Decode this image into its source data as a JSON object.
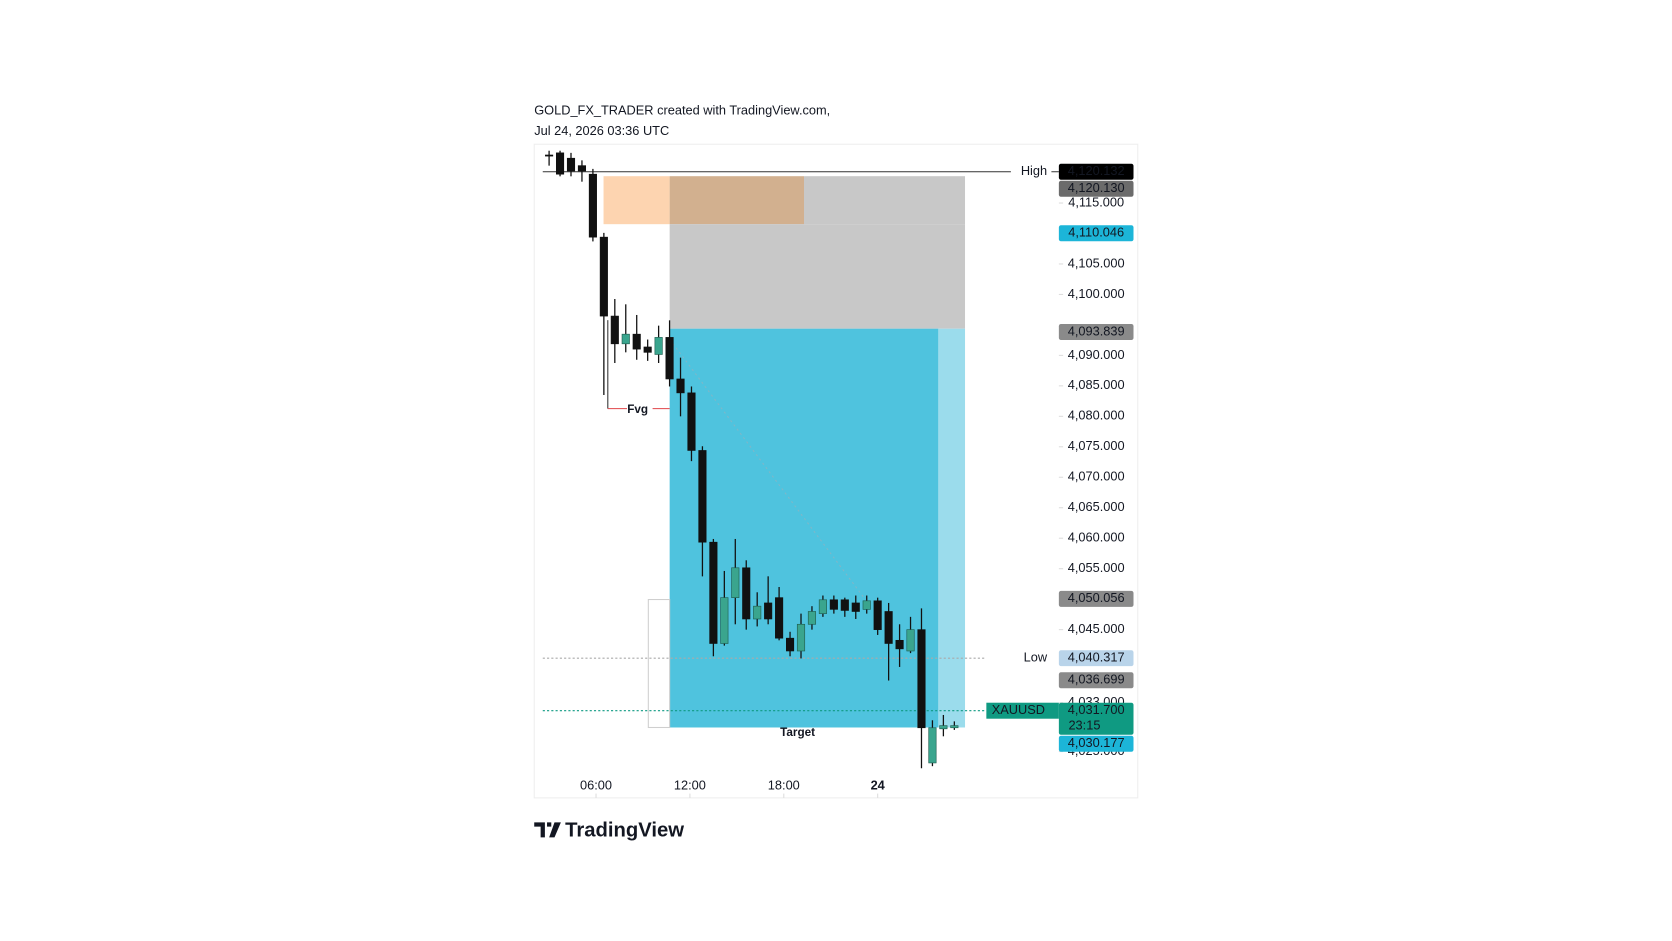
{
  "header": {
    "line1": "GOLD_FX_TRADER created with TradingView.com,",
    "line2": "Jul 24, 2026 03:36 UTC"
  },
  "footer": {
    "brand": "TradingView"
  },
  "chart_data": {
    "type": "candlestick",
    "x": [
      3,
      3.7,
      4.4,
      5.1,
      5.8,
      6.5,
      7.2,
      7.9,
      8.6,
      9.3,
      10,
      10.7,
      11.4,
      12.1,
      12.8,
      13.5,
      14.2,
      14.9,
      15.6,
      16.3,
      17,
      17.7,
      18.4,
      19.1,
      19.8,
      20.5,
      21.2,
      21.9,
      22.6,
      23.3,
      24,
      24.7,
      25.4,
      26.1,
      26.8,
      27.5,
      28.2,
      28.9
    ],
    "open": [
      4122.88,
      4123.23,
      4122.35,
      4121.13,
      4119.73,
      4109.4,
      4096.45,
      4091.9,
      4093.48,
      4091.38,
      4090.15,
      4092.95,
      4086.13,
      4083.85,
      4074.4,
      4059.35,
      4042.73,
      4050.25,
      4055.15,
      4046.75,
      4049.38,
      4050.25,
      4043.6,
      4041.5,
      4045.88,
      4047.63,
      4049.9,
      4049.9,
      4049.38,
      4048.33,
      4049.73,
      4047.98,
      4043.25,
      4041.5,
      4045.0,
      4023.13,
      4028.73,
      4028.9
    ],
    "high": [
      4123.58,
      4123.58,
      4123.23,
      4122.0,
      4120.6,
      4110.1,
      4099.25,
      4098.38,
      4096.63,
      4092.6,
      4094.88,
      4095.75,
      4089.63,
      4084.9,
      4075.1,
      4059.88,
      4054.63,
      4059.88,
      4056.38,
      4051.13,
      4053.75,
      4052.0,
      4044.65,
      4047.63,
      4048.85,
      4050.6,
      4050.6,
      4050.25,
      4050.6,
      4050.6,
      4050.25,
      4049.38,
      4045.88,
      4047.1,
      4048.5,
      4030.13,
      4031.0,
      4029.95
    ],
    "low": [
      4121.13,
      4119.38,
      4119.38,
      4118.5,
      4108.7,
      4083.5,
      4088.75,
      4090.5,
      4089.28,
      4089.1,
      4088.75,
      4084.9,
      4080.0,
      4072.65,
      4053.75,
      4040.63,
      4042.38,
      4045.88,
      4045.0,
      4045.53,
      4045.88,
      4043.25,
      4040.63,
      4040.28,
      4045.0,
      4047.1,
      4047.63,
      4047.1,
      4046.75,
      4047.63,
      4044.13,
      4036.65,
      4038.88,
      4041.15,
      4022.25,
      4022.6,
      4027.5,
      4028.55
    ],
    "close": [
      4122.7,
      4119.73,
      4120.25,
      4120.25,
      4109.4,
      4096.45,
      4091.9,
      4093.48,
      4091.03,
      4090.5,
      4092.95,
      4086.13,
      4083.85,
      4074.4,
      4059.35,
      4042.73,
      4050.25,
      4055.15,
      4046.75,
      4048.85,
      4046.75,
      4043.6,
      4041.5,
      4045.88,
      4047.98,
      4049.9,
      4048.33,
      4048.15,
      4047.98,
      4049.73,
      4045.0,
      4042.73,
      4041.85,
      4045.0,
      4028.9,
      4028.9,
      4029.25,
      4029.25
    ],
    "up_color": "#3aa58e",
    "down_color": "#111111",
    "xlim": [
      2.05,
      35.58
    ],
    "xticks": [
      {
        "value": 6,
        "label": "06:00"
      },
      {
        "value": 12,
        "label": "12:00"
      },
      {
        "value": 18,
        "label": "18:00"
      },
      24
    ],
    "ylim": [
      4017.4,
      4124.3
    ],
    "yticks": [
      {
        "value": 4115,
        "label": "4,115.000"
      },
      {
        "value": 4105,
        "label": "4,105.000"
      },
      {
        "value": 4100,
        "label": "4,100.000"
      },
      {
        "value": 4090,
        "label": "4,090.000"
      },
      {
        "value": 4085,
        "label": "4,085.000"
      },
      {
        "value": 4080,
        "label": "4,080.000"
      },
      {
        "value": 4075,
        "label": "4,075.000"
      },
      {
        "value": 4070,
        "label": "4,070.000"
      },
      {
        "value": 4065,
        "label": "4,065.000"
      },
      {
        "value": 4060,
        "label": "4,060.000"
      },
      {
        "value": 4055,
        "label": "4,055.000"
      },
      {
        "value": 4045,
        "label": "4,045.000"
      },
      {
        "value": 4033,
        "label": "4,033.000"
      },
      {
        "value": 4025,
        "label": "4,025.000"
      }
    ],
    "price_tags": [
      {
        "value": 4120.132,
        "label": "4,120.132",
        "color": "#000000",
        "name": "High"
      },
      {
        "value": 4120.13,
        "label": "4,120.130",
        "color": "#6b6b6b",
        "line": "solid"
      },
      {
        "value": 4110.046,
        "label": "4,110.046",
        "color": "#1cb5d8"
      },
      {
        "value": 4093.839,
        "label": "4,093.839",
        "color": "#8a8a8a"
      },
      {
        "value": 4050.056,
        "label": "4,050.056",
        "color": "#8a8a8a"
      },
      {
        "value": 4040.317,
        "label": "4,040.317",
        "color": "#b9d4ea",
        "text_color": "#131722",
        "name": "Low",
        "line": "dotted"
      },
      {
        "value": 4036.699,
        "label": "4,036.699",
        "color": "#8a8a8a"
      },
      {
        "value": 4031.7,
        "label": "4,031.700",
        "sub": "23:15",
        "color": "#0f9a82",
        "name": "XAUUSD",
        "name_color": "#0f9a82",
        "line": "dotted"
      },
      {
        "value": 4030.177,
        "label": "4,030.177",
        "color": "#1cb5d8"
      }
    ],
    "annotations": [
      "Fvg",
      "Target"
    ]
  }
}
